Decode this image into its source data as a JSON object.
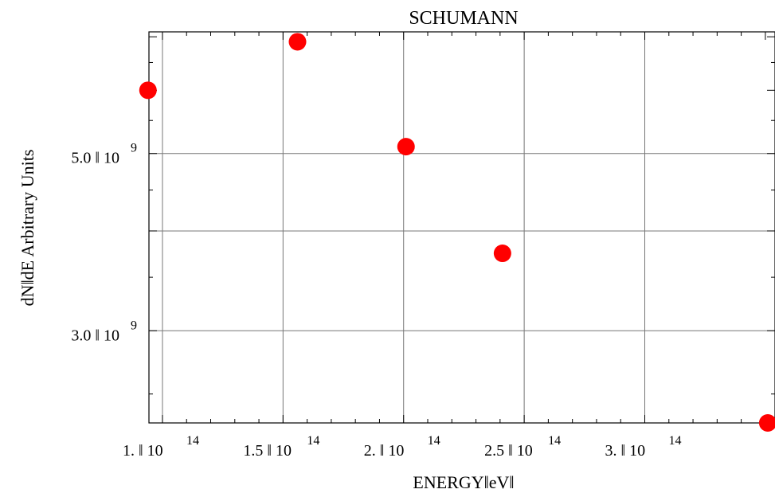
{
  "chart_data": {
    "type": "scatter",
    "title": "SCHUMANN",
    "xlabel": "ENERGY‖eV‖",
    "ylabel": "dN‖dE Arbitrary Units",
    "xlim": [
      94400000000000.0,
      354000000000000.0
    ],
    "ylim": [
      2300000000.0,
      7100000000.0
    ],
    "y_scale": "log",
    "grid": true,
    "legend": "none",
    "marker_color": "#ff0000",
    "x_ticks": [
      {
        "value": 100000000000000.0,
        "mantissa": "1.",
        "base": "10",
        "exp": "14"
      },
      {
        "value": 150000000000000.0,
        "mantissa": "1.5",
        "base": "10",
        "exp": "14"
      },
      {
        "value": 200000000000000.0,
        "mantissa": "2.",
        "base": "10",
        "exp": "14"
      },
      {
        "value": 250000000000000.0,
        "mantissa": "2.5",
        "base": "10",
        "exp": "14"
      },
      {
        "value": 300000000000000.0,
        "mantissa": "3.",
        "base": "10",
        "exp": "14"
      }
    ],
    "y_ticks": [
      {
        "value": 5000000000.0,
        "mantissa": "5.0",
        "base": "10",
        "exp": "9"
      },
      {
        "value": 3000000000.0,
        "mantissa": "3.0",
        "base": "10",
        "exp": "9"
      }
    ],
    "y_grid_extra": [
      4000000000.0
    ],
    "points": [
      {
        "x": 94000000000000.0,
        "y": 6000000000.0
      },
      {
        "x": 156000000000000.0,
        "y": 6900000000.0
      },
      {
        "x": 201000000000000.0,
        "y": 5100000000.0
      },
      {
        "x": 241000000000000.0,
        "y": 3750000000.0
      },
      {
        "x": 351000000000000.0,
        "y": 2300000000.0
      }
    ]
  }
}
